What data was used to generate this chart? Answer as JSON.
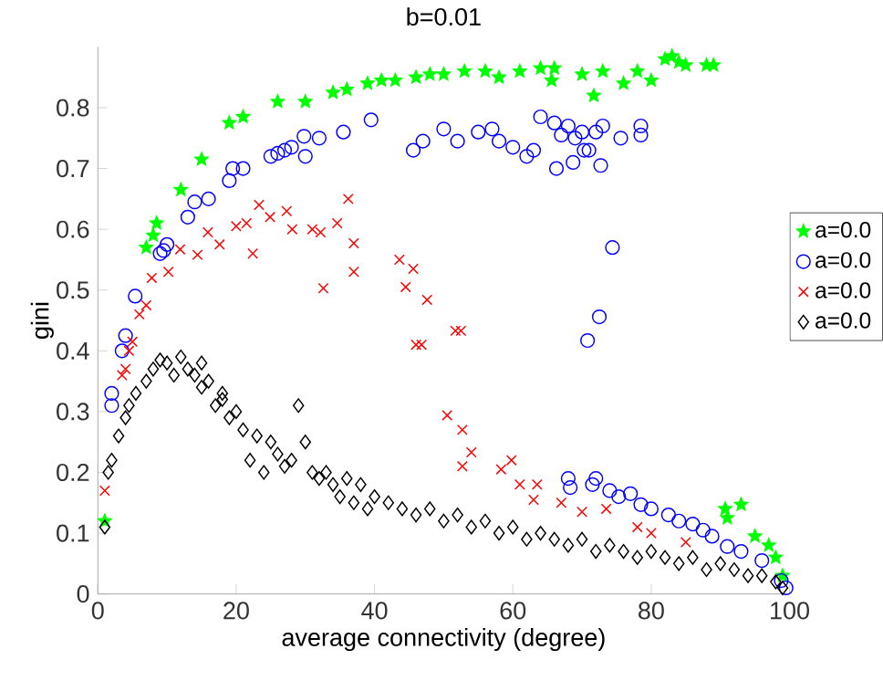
{
  "chart_data": {
    "type": "scatter",
    "title": "b=0.01",
    "xlabel": "average connectivity (degree)",
    "ylabel": "gini",
    "xlim": [
      0,
      100
    ],
    "ylim": [
      0,
      0.9
    ],
    "xticks": [
      0,
      20,
      40,
      60,
      80,
      100
    ],
    "yticks": [
      0,
      0.1,
      0.2,
      0.3,
      0.4,
      0.5,
      0.6,
      0.7,
      0.8
    ],
    "grid": false,
    "legend": "right",
    "series": [
      {
        "name": "a=0.0",
        "color": "#00ff00",
        "marker": "star",
        "x": [
          1,
          7,
          8,
          8.5,
          12,
          15,
          19,
          21,
          26,
          30,
          34,
          36,
          39,
          41,
          43,
          46,
          48,
          50,
          53,
          56,
          58,
          61,
          64,
          65.6,
          66,
          70,
          71.7,
          73,
          76,
          78,
          80,
          82,
          83,
          84,
          85,
          88,
          89,
          90.7,
          91,
          93,
          95,
          97,
          98,
          99
        ],
        "values": [
          0.12,
          0.57,
          0.59,
          0.61,
          0.665,
          0.715,
          0.775,
          0.785,
          0.81,
          0.81,
          0.825,
          0.83,
          0.84,
          0.845,
          0.845,
          0.85,
          0.855,
          0.855,
          0.86,
          0.86,
          0.85,
          0.86,
          0.865,
          0.845,
          0.865,
          0.855,
          0.82,
          0.86,
          0.84,
          0.86,
          0.845,
          0.88,
          0.885,
          0.875,
          0.87,
          0.87,
          0.87,
          0.14,
          0.125,
          0.147,
          0.095,
          0.08,
          0.06,
          0.03
        ]
      },
      {
        "name": "a=0.0",
        "color": "#0000ff",
        "marker": "circle",
        "x": [
          2,
          2,
          3.5,
          4,
          5.4,
          9,
          9.5,
          10,
          13,
          14,
          16,
          19,
          19.5,
          21,
          25,
          26,
          27,
          28,
          29.8,
          30,
          32,
          35.5,
          39.5,
          45.6,
          47,
          50,
          52,
          55,
          57,
          58,
          60,
          62,
          63,
          64,
          66,
          66.3,
          67,
          68,
          68.7,
          69,
          70,
          70.3,
          71,
          72,
          72.7,
          73,
          75.6,
          78.5,
          78.5,
          74.4,
          72.5,
          70.8,
          68,
          68.3,
          72,
          71.5,
          74,
          75.3,
          77,
          78.5,
          80,
          82.5,
          84,
          86,
          87.5,
          88.8,
          91,
          93,
          96,
          98.8,
          99.5
        ],
        "values": [
          0.31,
          0.33,
          0.4,
          0.425,
          0.49,
          0.56,
          0.565,
          0.575,
          0.62,
          0.645,
          0.65,
          0.68,
          0.7,
          0.7,
          0.72,
          0.725,
          0.73,
          0.735,
          0.753,
          0.72,
          0.75,
          0.76,
          0.78,
          0.73,
          0.745,
          0.765,
          0.745,
          0.76,
          0.765,
          0.745,
          0.735,
          0.72,
          0.73,
          0.785,
          0.775,
          0.7,
          0.755,
          0.77,
          0.71,
          0.75,
          0.76,
          0.73,
          0.73,
          0.76,
          0.705,
          0.77,
          0.75,
          0.77,
          0.755,
          0.57,
          0.456,
          0.417,
          0.19,
          0.175,
          0.19,
          0.18,
          0.17,
          0.16,
          0.165,
          0.147,
          0.14,
          0.13,
          0.12,
          0.115,
          0.105,
          0.095,
          0.078,
          0.07,
          0.055,
          0.022,
          0.01
        ]
      },
      {
        "name": "a=0.0",
        "color": "#ff0000",
        "marker": "cross",
        "x": [
          1,
          3.5,
          4,
          4.5,
          5,
          6,
          7,
          7.8,
          10.2,
          11.9,
          14.4,
          15.9,
          17.6,
          20,
          21.5,
          22.4,
          23.3,
          24.9,
          27.3,
          28.1,
          31,
          32.2,
          32.6,
          34.6,
          36.2,
          37,
          37,
          43.6,
          44.5,
          45.6,
          46,
          46.8,
          47.6,
          50.5,
          51.7,
          52.5,
          52.7,
          52.7,
          54,
          58.3,
          59.8,
          61,
          63,
          63.5,
          67,
          70,
          73.5,
          78,
          80,
          85
        ],
        "values": [
          0.17,
          0.36,
          0.37,
          0.4,
          0.415,
          0.46,
          0.475,
          0.52,
          0.53,
          0.567,
          0.558,
          0.595,
          0.575,
          0.605,
          0.61,
          0.56,
          0.64,
          0.62,
          0.63,
          0.6,
          0.6,
          0.595,
          0.503,
          0.61,
          0.65,
          0.577,
          0.53,
          0.55,
          0.505,
          0.535,
          0.41,
          0.41,
          0.484,
          0.294,
          0.433,
          0.433,
          0.27,
          0.21,
          0.233,
          0.205,
          0.22,
          0.18,
          0.155,
          0.18,
          0.15,
          0.135,
          0.14,
          0.11,
          0.1,
          0.085
        ]
      },
      {
        "name": "a=0.0",
        "color": "#000000",
        "marker": "diamond",
        "x": [
          1,
          1.5,
          2,
          3,
          4,
          4.5,
          5.5,
          7,
          8,
          9,
          10,
          11,
          12,
          13,
          14,
          15,
          15,
          16,
          17,
          18,
          18,
          19,
          20,
          21,
          22,
          23,
          24,
          25,
          26,
          27,
          28,
          29,
          30,
          31,
          32,
          33,
          34,
          35,
          36,
          37,
          38,
          39,
          40,
          42,
          44,
          46,
          48,
          50,
          52,
          54,
          56,
          58,
          60,
          62,
          64,
          66,
          68,
          70,
          72,
          74,
          76,
          78,
          80,
          82,
          84,
          86,
          88,
          90,
          92,
          94,
          96,
          98,
          99
        ],
        "values": [
          0.11,
          0.2,
          0.22,
          0.26,
          0.29,
          0.31,
          0.33,
          0.35,
          0.37,
          0.385,
          0.38,
          0.36,
          0.39,
          0.37,
          0.36,
          0.34,
          0.38,
          0.35,
          0.31,
          0.32,
          0.33,
          0.29,
          0.3,
          0.27,
          0.22,
          0.26,
          0.2,
          0.25,
          0.23,
          0.21,
          0.22,
          0.31,
          0.25,
          0.2,
          0.19,
          0.2,
          0.18,
          0.16,
          0.19,
          0.15,
          0.18,
          0.14,
          0.16,
          0.15,
          0.14,
          0.13,
          0.14,
          0.12,
          0.13,
          0.11,
          0.12,
          0.1,
          0.11,
          0.09,
          0.1,
          0.09,
          0.08,
          0.09,
          0.07,
          0.08,
          0.07,
          0.06,
          0.07,
          0.06,
          0.05,
          0.06,
          0.04,
          0.05,
          0.04,
          0.03,
          0.03,
          0.02,
          0.01
        ]
      }
    ]
  }
}
